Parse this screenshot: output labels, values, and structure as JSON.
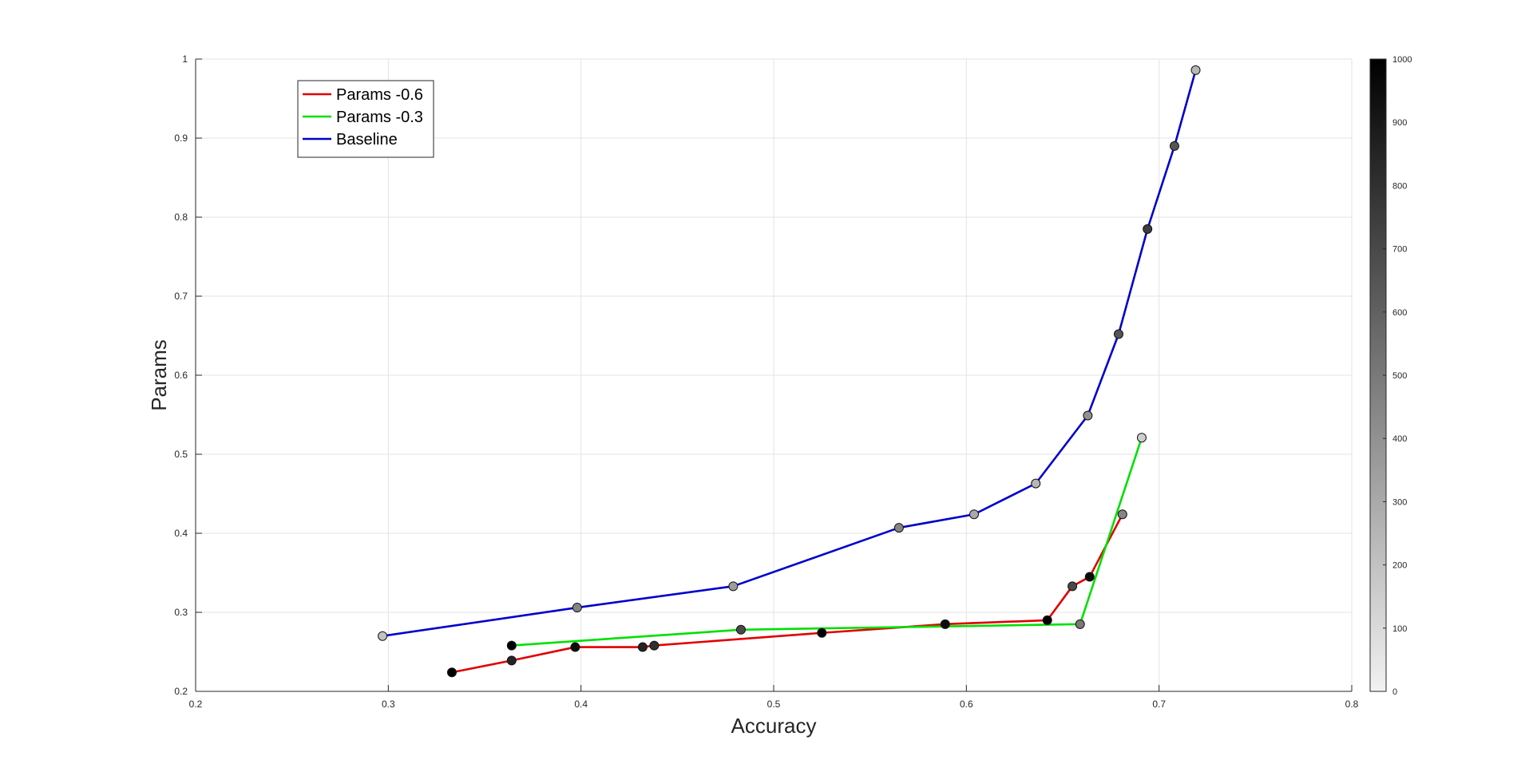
{
  "chart_data": {
    "type": "line",
    "xlabel": "Accuracy",
    "ylabel": "Params",
    "xlim": [
      0.2,
      0.8
    ],
    "ylim": [
      0.2,
      1.0
    ],
    "xticks": [
      "0.2",
      "0.3",
      "0.4",
      "0.5",
      "0.6",
      "0.7",
      "0.8"
    ],
    "yticks": [
      "0.2",
      "0.3",
      "0.4",
      "0.5",
      "0.6",
      "0.7",
      "0.8",
      "0.9",
      "1"
    ],
    "grid": true,
    "legend_position": "top-left",
    "colorbar": {
      "range": [
        0,
        1000
      ],
      "ticks": [
        "0",
        "100",
        "200",
        "300",
        "400",
        "500",
        "600",
        "700",
        "800",
        "900",
        "1000"
      ],
      "colormap": "gray-reversed"
    },
    "series": [
      {
        "name": "Params -0.6",
        "color": "#e00000",
        "points": [
          {
            "x": 0.333,
            "y": 0.224,
            "c": 1000
          },
          {
            "x": 0.364,
            "y": 0.239,
            "c": 850
          },
          {
            "x": 0.397,
            "y": 0.256,
            "c": 950
          },
          {
            "x": 0.432,
            "y": 0.256,
            "c": 850
          },
          {
            "x": 0.438,
            "y": 0.258,
            "c": 800
          },
          {
            "x": 0.525,
            "y": 0.274,
            "c": 1000
          },
          {
            "x": 0.589,
            "y": 0.285,
            "c": 950
          },
          {
            "x": 0.642,
            "y": 0.29,
            "c": 1000
          },
          {
            "x": 0.655,
            "y": 0.333,
            "c": 700
          },
          {
            "x": 0.664,
            "y": 0.345,
            "c": 950
          },
          {
            "x": 0.681,
            "y": 0.424,
            "c": 450
          }
        ]
      },
      {
        "name": "Params -0.3",
        "color": "#00e000",
        "points": [
          {
            "x": 0.364,
            "y": 0.258,
            "c": 1000
          },
          {
            "x": 0.483,
            "y": 0.278,
            "c": 700
          },
          {
            "x": 0.659,
            "y": 0.285,
            "c": 500
          },
          {
            "x": 0.691,
            "y": 0.521,
            "c": 150
          }
        ]
      },
      {
        "name": "Baseline",
        "color": "#0000cc",
        "points": [
          {
            "x": 0.297,
            "y": 0.27,
            "c": 200
          },
          {
            "x": 0.398,
            "y": 0.306,
            "c": 450
          },
          {
            "x": 0.479,
            "y": 0.333,
            "c": 350
          },
          {
            "x": 0.565,
            "y": 0.407,
            "c": 450
          },
          {
            "x": 0.604,
            "y": 0.424,
            "c": 300
          },
          {
            "x": 0.636,
            "y": 0.463,
            "c": 250
          },
          {
            "x": 0.663,
            "y": 0.549,
            "c": 400
          },
          {
            "x": 0.679,
            "y": 0.652,
            "c": 650
          },
          {
            "x": 0.694,
            "y": 0.785,
            "c": 750
          },
          {
            "x": 0.708,
            "y": 0.89,
            "c": 650
          },
          {
            "x": 0.719,
            "y": 0.986,
            "c": 250
          }
        ]
      }
    ]
  }
}
